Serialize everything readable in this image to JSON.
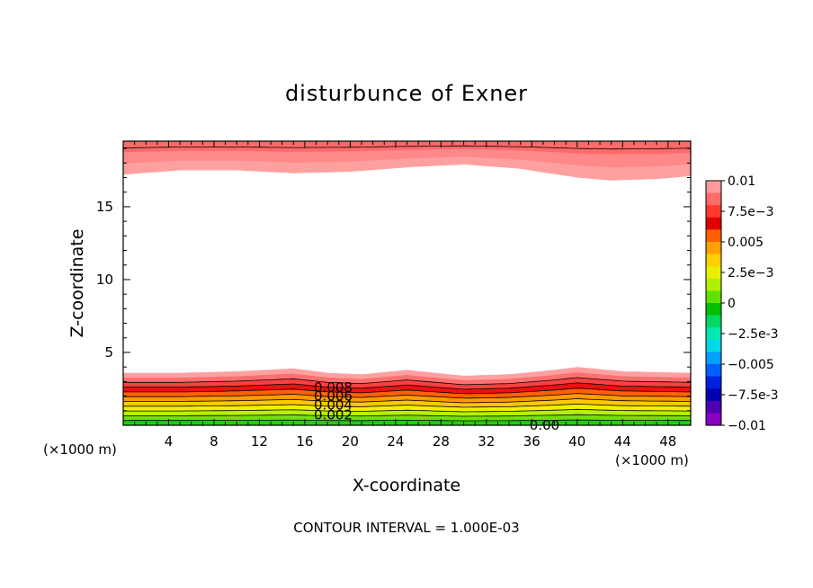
{
  "chart_data": {
    "type": "contour",
    "title": "disturbunce of Exner",
    "xlabel": "X-coordinate",
    "ylabel": "Z-coordinate",
    "x_unit_left": "(×1000 m)",
    "x_unit_right": "(×1000 m)",
    "footer": "CONTOUR INTERVAL = 1.000E-03",
    "xlim": [
      0,
      50
    ],
    "ylim": [
      0,
      19.5
    ],
    "x_ticks": [
      "4",
      "8",
      "12",
      "16",
      "20",
      "24",
      "28",
      "32",
      "36",
      "40",
      "44",
      "48"
    ],
    "x_tick_values": [
      4,
      8,
      12,
      16,
      20,
      24,
      28,
      32,
      36,
      40,
      44,
      48
    ],
    "y_ticks": [
      "5",
      "10",
      "15"
    ],
    "y_tick_values": [
      5,
      10,
      15
    ],
    "colorbar": {
      "labels": [
        "0.01",
        "7.5e-3",
        "0.005",
        "2.5e-3",
        "0",
        "-2.5e-3",
        "-0.005",
        "-7.5e-3",
        "-0.01"
      ],
      "colors": [
        "#ff9a9a",
        "#ff6a6a",
        "#ff3a2a",
        "#e00000",
        "#ff6000",
        "#ffa000",
        "#ffd000",
        "#e8f000",
        "#b0f000",
        "#60e000",
        "#00c000",
        "#00d860",
        "#00e8b0",
        "#00d8e8",
        "#00a0ff",
        "#0060ff",
        "#0020e0",
        "#0000b0",
        "#5000b0",
        "#8a00c0"
      ]
    },
    "bottom_bands": {
      "top_height_profile": {
        "x": [
          0,
          5,
          10,
          15,
          18,
          21,
          25,
          30,
          34,
          38,
          40,
          44,
          50
        ],
        "z": [
          3.6,
          3.6,
          3.7,
          3.9,
          3.6,
          3.5,
          3.8,
          3.4,
          3.5,
          3.8,
          4.0,
          3.7,
          3.6
        ]
      },
      "fill_colors": [
        "#ffa0a0",
        "#ff7070",
        "#ff4040",
        "#ee1010",
        "#ff6000",
        "#ff9a00",
        "#ffc800",
        "#f0f000",
        "#b8f000",
        "#70e000",
        "#20d000"
      ]
    },
    "top_bands": {
      "boundary_profile": {
        "x": [
          0,
          5,
          10,
          15,
          20,
          25,
          30,
          35,
          40,
          43,
          47,
          50
        ],
        "z": [
          17.2,
          17.5,
          17.5,
          17.3,
          17.4,
          17.7,
          17.9,
          17.6,
          17.0,
          16.8,
          16.9,
          17.1
        ]
      },
      "fill_colors": [
        "#ffa0a0",
        "#ff8888",
        "#ff6a6a"
      ]
    },
    "contour_labels": [
      {
        "text": "0.008",
        "x": 16.8,
        "z": 2.6
      },
      {
        "text": "0.006",
        "x": 16.8,
        "z": 2.0
      },
      {
        "text": "0.004",
        "x": 16.8,
        "z": 1.4
      },
      {
        "text": "0.002",
        "x": 16.8,
        "z": 0.7
      },
      {
        "text": "0.00",
        "x": 35.8,
        "z": 0.0
      }
    ]
  }
}
